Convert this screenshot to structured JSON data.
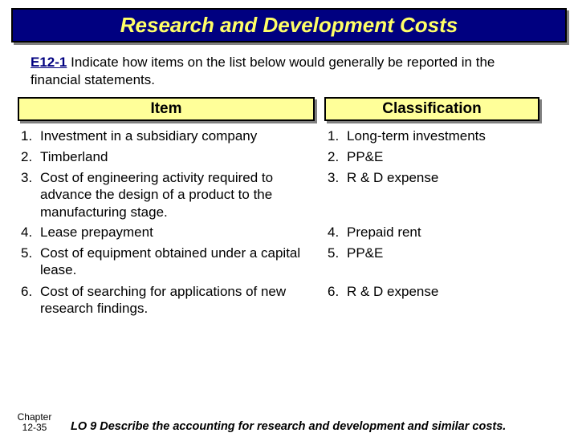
{
  "title": "Research and Development Costs",
  "exercise": {
    "label": "E12-1",
    "text": "Indicate how items on the list below would generally be reported in the financial statements."
  },
  "headers": {
    "left": "Item",
    "right": "Classification"
  },
  "items": [
    {
      "n": "1.",
      "text": "Investment in a subsidiary company"
    },
    {
      "n": "2.",
      "text": "Timberland"
    },
    {
      "n": "3.",
      "text": "Cost of engineering activity required to advance the design of a product to the manufacturing stage."
    },
    {
      "n": "4.",
      "text": "Lease prepayment"
    },
    {
      "n": "5.",
      "text": "Cost of equipment obtained under a capital lease."
    },
    {
      "n": "6.",
      "text": "Cost of searching for applications of new research findings."
    }
  ],
  "classifications": [
    {
      "n": "1.",
      "text": "Long-term investments"
    },
    {
      "n": "2.",
      "text": "PP&E"
    },
    {
      "n": "3.",
      "text": "R & D expense"
    },
    {
      "n": "4.",
      "text": "Prepaid rent"
    },
    {
      "n": "5.",
      "text": "PP&E"
    },
    {
      "n": "6.",
      "text": " R & D expense"
    }
  ],
  "item_heights": [
    24,
    24,
    66,
    24,
    46,
    46
  ],
  "footer": {
    "chapter_line1": "Chapter",
    "chapter_line2": "12-35",
    "lo": "LO 9 Describe the accounting for research and development and similar costs."
  },
  "colors": {
    "title_bg": "#000080",
    "title_text": "#ffff66",
    "header_bg": "#ffff99",
    "shadow": "#808080",
    "body_text": "#000000"
  }
}
